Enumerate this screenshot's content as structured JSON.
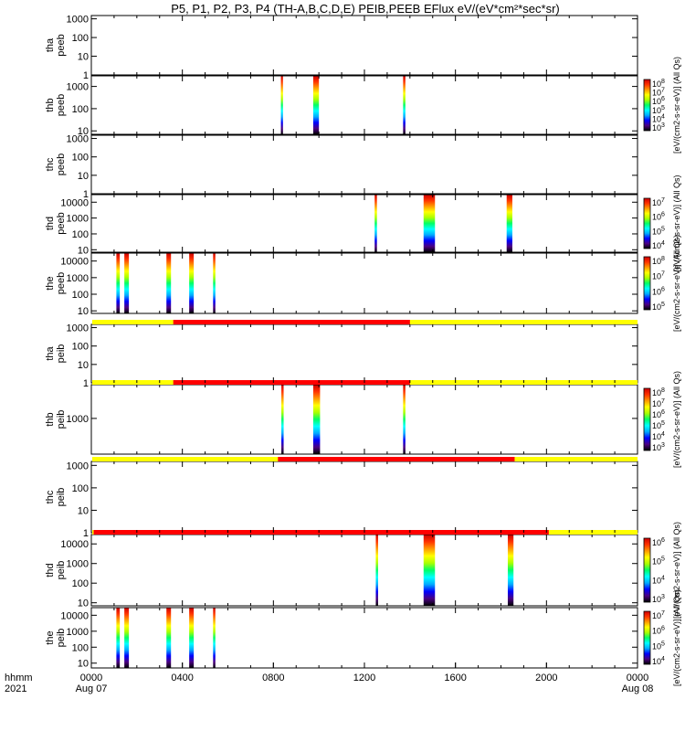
{
  "title": "P5, P1, P2, P3, P4 (TH-A,B,C,D,E) PEIB,PEEB EFlux eV/(eV*cm²*sec*sr)",
  "colors": {
    "frame": "#000000",
    "bar_on": "#ff0000",
    "bar_off": "#ffff00",
    "gradient": [
      "#000000",
      "#4b0082",
      "#0000ff",
      "#00aaff",
      "#00ffff",
      "#00ff66",
      "#aaff00",
      "#ffff00",
      "#ff9900",
      "#ff3300",
      "#cc0000"
    ]
  },
  "time_axis": {
    "label_row1": "hhmm",
    "label_row2": "2021",
    "ticks": [
      {
        "hour": 0,
        "line1": "0000",
        "line2": "Aug 07"
      },
      {
        "hour": 4,
        "line1": "0400",
        "line2": ""
      },
      {
        "hour": 8,
        "line1": "0800",
        "line2": ""
      },
      {
        "hour": 12,
        "line1": "1200",
        "line2": ""
      },
      {
        "hour": 16,
        "line1": "1600",
        "line2": ""
      },
      {
        "hour": 20,
        "line1": "2000",
        "line2": ""
      },
      {
        "hour": 24,
        "line1": "0000",
        "line2": "Aug 08"
      }
    ]
  },
  "colorbar_label": "[eV/(cm2-s-sr-eV)] (All Qs)",
  "chart_data": [
    {
      "type": "heatmap",
      "ylabel": [
        "tha",
        "peeb"
      ],
      "ylog": true,
      "ylim": [
        1,
        1500
      ],
      "yticks": [
        {
          "v": 1000,
          "t": "1000"
        },
        {
          "v": 100,
          "t": "100"
        },
        {
          "v": 10,
          "t": "10"
        },
        {
          "v": 1,
          "t": "1"
        }
      ],
      "colorbar": null,
      "status_bar": null,
      "spectra": []
    },
    {
      "type": "heatmap",
      "ylabel": [
        "thb",
        "peeb"
      ],
      "ylog": true,
      "ylim": [
        7,
        3000
      ],
      "yticks": [
        {
          "v": 1000,
          "t": "1000"
        },
        {
          "v": 100,
          "t": "100"
        },
        {
          "v": 10,
          "t": "10"
        }
      ],
      "colorbar": {
        "ticks": [
          "10^8",
          "10^7",
          "10^6",
          "10^5",
          "10^4",
          "10^3"
        ]
      },
      "status_bar": null,
      "spectra": [
        {
          "start": 8.33,
          "end": 8.42,
          "ymin": 7,
          "ymax": 3000
        },
        {
          "start": 9.75,
          "end": 10.0,
          "ymin": 7,
          "ymax": 3000
        },
        {
          "start": 13.7,
          "end": 13.8,
          "ymin": 7,
          "ymax": 3000
        }
      ]
    },
    {
      "type": "heatmap",
      "ylabel": [
        "thc",
        "peeb"
      ],
      "ylog": true,
      "ylim": [
        1,
        1500
      ],
      "yticks": [
        {
          "v": 1000,
          "t": "1000"
        },
        {
          "v": 100,
          "t": "100"
        },
        {
          "v": 10,
          "t": "10"
        },
        {
          "v": 1,
          "t": "1"
        }
      ],
      "colorbar": null,
      "status_bar": null,
      "spectra": []
    },
    {
      "type": "heatmap",
      "ylabel": [
        "thd",
        "peeb"
      ],
      "ylog": true,
      "ylim": [
        7,
        30000
      ],
      "yticks": [
        {
          "v": 10000,
          "t": "10000"
        },
        {
          "v": 1000,
          "t": "1000"
        },
        {
          "v": 100,
          "t": "100"
        },
        {
          "v": 10,
          "t": "10"
        }
      ],
      "colorbar": {
        "ticks": [
          "10^7",
          "10^6",
          "10^5",
          "10^4"
        ]
      },
      "status_bar": null,
      "spectra": [
        {
          "start": 12.45,
          "end": 12.55,
          "ymin": 7,
          "ymax": 30000
        },
        {
          "start": 14.6,
          "end": 15.1,
          "ymin": 7,
          "ymax": 30000
        },
        {
          "start": 18.25,
          "end": 18.5,
          "ymin": 7,
          "ymax": 30000
        }
      ]
    },
    {
      "type": "heatmap",
      "ylabel": [
        "the",
        "peeb"
      ],
      "ylog": true,
      "ylim": [
        7,
        30000
      ],
      "yticks": [
        {
          "v": 10000,
          "t": "10000"
        },
        {
          "v": 1000,
          "t": "1000"
        },
        {
          "v": 100,
          "t": "100"
        },
        {
          "v": 10,
          "t": "10"
        }
      ],
      "colorbar": {
        "ticks": [
          "10^8",
          "10^7",
          "10^6",
          "10^5"
        ]
      },
      "status_bar": null,
      "spectra": [
        {
          "start": 1.1,
          "end": 1.25,
          "ymin": 7,
          "ymax": 30000
        },
        {
          "start": 1.45,
          "end": 1.65,
          "ymin": 7,
          "ymax": 30000
        },
        {
          "start": 3.3,
          "end": 3.5,
          "ymin": 7,
          "ymax": 30000
        },
        {
          "start": 4.3,
          "end": 4.5,
          "ymin": 7,
          "ymax": 30000
        },
        {
          "start": 5.35,
          "end": 5.45,
          "ymin": 7,
          "ymax": 30000
        }
      ]
    },
    {
      "type": "heatmap",
      "ylabel": [
        "tha",
        "peib"
      ],
      "ylog": true,
      "ylim": [
        1,
        1500
      ],
      "yticks": [
        {
          "v": 1000,
          "t": "1000"
        },
        {
          "v": 100,
          "t": "100"
        },
        {
          "v": 10,
          "t": "10"
        },
        {
          "v": 1,
          "t": "1"
        }
      ],
      "colorbar": null,
      "status_bar": {
        "on_start": 3.6,
        "on_end": 14.0
      },
      "spectra": []
    },
    {
      "type": "heatmap",
      "ylabel": [
        "thb",
        "peib"
      ],
      "ylog": true,
      "ylim": [
        150,
        6000
      ],
      "yticks": [
        {
          "v": 1000,
          "t": "1000"
        }
      ],
      "colorbar": {
        "ticks": [
          "10^8",
          "10^7",
          "10^6",
          "10^5",
          "10^4",
          "10^3"
        ]
      },
      "status_bar": {
        "on_start": 3.6,
        "on_end": 14.0
      },
      "spectra": [
        {
          "start": 8.35,
          "end": 8.45,
          "ymin": 150,
          "ymax": 6000
        },
        {
          "start": 9.75,
          "end": 10.05,
          "ymin": 150,
          "ymax": 6000
        },
        {
          "start": 13.7,
          "end": 13.8,
          "ymin": 150,
          "ymax": 6000
        }
      ]
    },
    {
      "type": "heatmap",
      "ylabel": [
        "thc",
        "peib"
      ],
      "ylog": true,
      "ylim": [
        1,
        1500
      ],
      "yticks": [
        {
          "v": 1000,
          "t": "1000"
        },
        {
          "v": 100,
          "t": "100"
        },
        {
          "v": 10,
          "t": "10"
        },
        {
          "v": 1,
          "t": "1"
        }
      ],
      "colorbar": null,
      "status_bar": {
        "on_start": 8.2,
        "on_end": 18.6
      },
      "spectra": []
    },
    {
      "type": "heatmap",
      "ylabel": [
        "thd",
        "peib"
      ],
      "ylog": true,
      "ylim": [
        7,
        30000
      ],
      "yticks": [
        {
          "v": 10000,
          "t": "10000"
        },
        {
          "v": 1000,
          "t": "1000"
        },
        {
          "v": 100,
          "t": "100"
        },
        {
          "v": 10,
          "t": "10"
        }
      ],
      "colorbar": {
        "ticks": [
          "10^6",
          "10^5",
          "10^4",
          "10^3"
        ]
      },
      "status_bar": {
        "on_start": 0.1,
        "on_end": 20.1
      },
      "spectra": [
        {
          "start": 12.5,
          "end": 12.6,
          "ymin": 7,
          "ymax": 30000
        },
        {
          "start": 14.6,
          "end": 15.1,
          "ymin": 7,
          "ymax": 30000
        },
        {
          "start": 18.3,
          "end": 18.55,
          "ymin": 7,
          "ymax": 30000
        }
      ]
    },
    {
      "type": "heatmap",
      "ylabel": [
        "the",
        "peib"
      ],
      "ylog": true,
      "ylim": [
        5,
        30000
      ],
      "yticks": [
        {
          "v": 10000,
          "t": "10000"
        },
        {
          "v": 1000,
          "t": "1000"
        },
        {
          "v": 100,
          "t": "100"
        },
        {
          "v": 10,
          "t": "10"
        }
      ],
      "colorbar": {
        "ticks": [
          "10^7",
          "10^6",
          "10^5",
          "10^4"
        ]
      },
      "status_bar": null,
      "spectra": [
        {
          "start": 1.1,
          "end": 1.25,
          "ymin": 5,
          "ymax": 30000
        },
        {
          "start": 1.45,
          "end": 1.65,
          "ymin": 5,
          "ymax": 30000
        },
        {
          "start": 3.3,
          "end": 3.5,
          "ymin": 5,
          "ymax": 30000
        },
        {
          "start": 4.3,
          "end": 4.5,
          "ymin": 5,
          "ymax": 30000
        },
        {
          "start": 5.35,
          "end": 5.45,
          "ymin": 5,
          "ymax": 30000
        }
      ]
    }
  ]
}
